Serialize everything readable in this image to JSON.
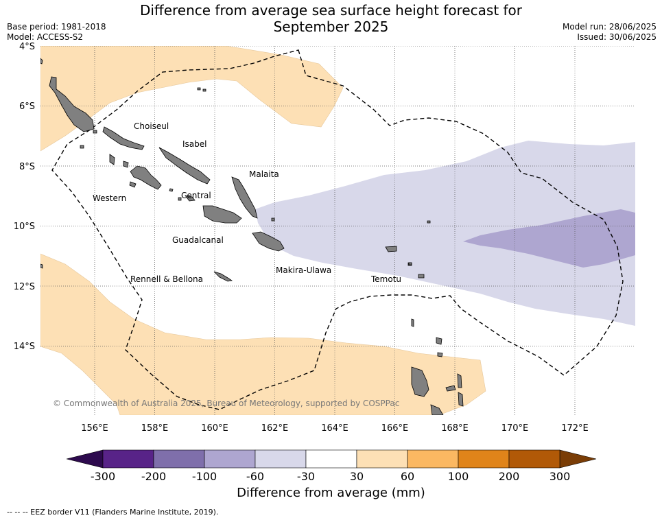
{
  "title_line1": "Difference from average sea surface height forecast for",
  "title_line2": "September 2025",
  "base_period": "Base period: 1981-2018",
  "model": "Model: ACCESS-S2",
  "model_run": "Model run: 28/06/2025",
  "issued": "Issued: 30/06/2025",
  "lat_labels": [
    "4°S",
    "6°S",
    "8°S",
    "10°S",
    "12°S",
    "14°S"
  ],
  "lon_labels": [
    "156°E",
    "158°E",
    "160°E",
    "162°E",
    "164°E",
    "166°E",
    "168°E",
    "170°E",
    "172°E"
  ],
  "provinces": [
    {
      "name": "Choiseul"
    },
    {
      "name": "Isabel"
    },
    {
      "name": "Malaita"
    },
    {
      "name": "Western"
    },
    {
      "name": "Central"
    },
    {
      "name": "Guadalcanal"
    },
    {
      "name": "Makira-Ulawa"
    },
    {
      "name": "Rennell & Bellona"
    },
    {
      "name": "Temotu"
    }
  ],
  "copyright": "© Commonwealth of Australia 2025, Bureau of Meteorology, supported by COSPPac",
  "colorbar": {
    "ticks": [
      "-300",
      "-200",
      "-100",
      "-60",
      "-30",
      "30",
      "60",
      "100",
      "200",
      "300"
    ],
    "colors": [
      "#582388",
      "#7f6fab",
      "#aea6d0",
      "#d8d8ea",
      "#ffffff",
      "#fde0b5",
      "#fbb862",
      "#e0841a",
      "#b15907"
    ],
    "under_color": "#2d0a4e",
    "over_color": "#7a3d06",
    "label": "Difference from average (mm)"
  },
  "colors": {
    "land": "#808080",
    "positive_30_60": "#fde0b5",
    "negative_60_30": "#d8d8ea",
    "negative_100_60": "#aea6d0"
  },
  "footnote": "--  --  -- EEZ border V11 (Flanders Marine Institute, 2019)."
}
